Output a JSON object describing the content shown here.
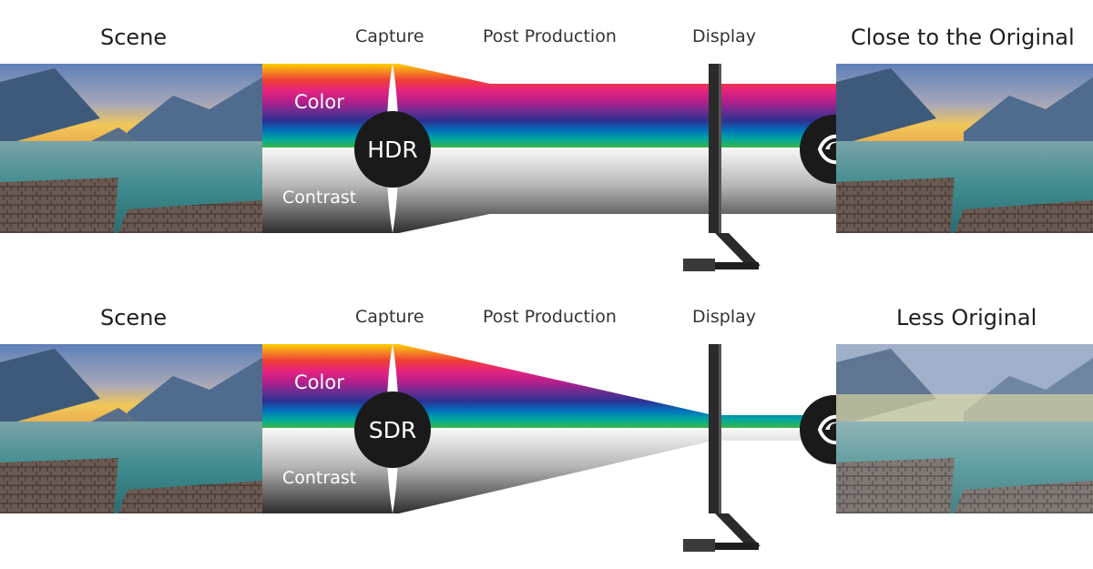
{
  "top_row": {
    "scene_label": "Scene",
    "capture_label": "Capture",
    "post_production_label": "Post Production",
    "display_label": "Display",
    "result_label": "Close to the Original",
    "color_label": "Color",
    "contrast_label": "Contrast",
    "badge": "HDR"
  },
  "bottom_row": {
    "scene_label": "Scene",
    "capture_label": "Capture",
    "post_production_label": "Post Production",
    "display_label": "Display",
    "result_label": "Less Original",
    "color_label": "Color",
    "contrast_label": "Contrast",
    "badge": "SDR"
  },
  "colors": {
    "spectrum": [
      "#f8b400",
      "#f7941d",
      "#ee2a7b",
      "#b51f8c",
      "#5b2d90",
      "#2e3192",
      "#0072bc",
      "#00a99d",
      "#39b54a"
    ],
    "contrast_dark": "#3a3a3a",
    "circle": "#1a1a1a"
  },
  "icons": {
    "capture_marker": "lens-marker-icon",
    "viewer": "eye-icon",
    "display_device": "monitor-icon"
  }
}
